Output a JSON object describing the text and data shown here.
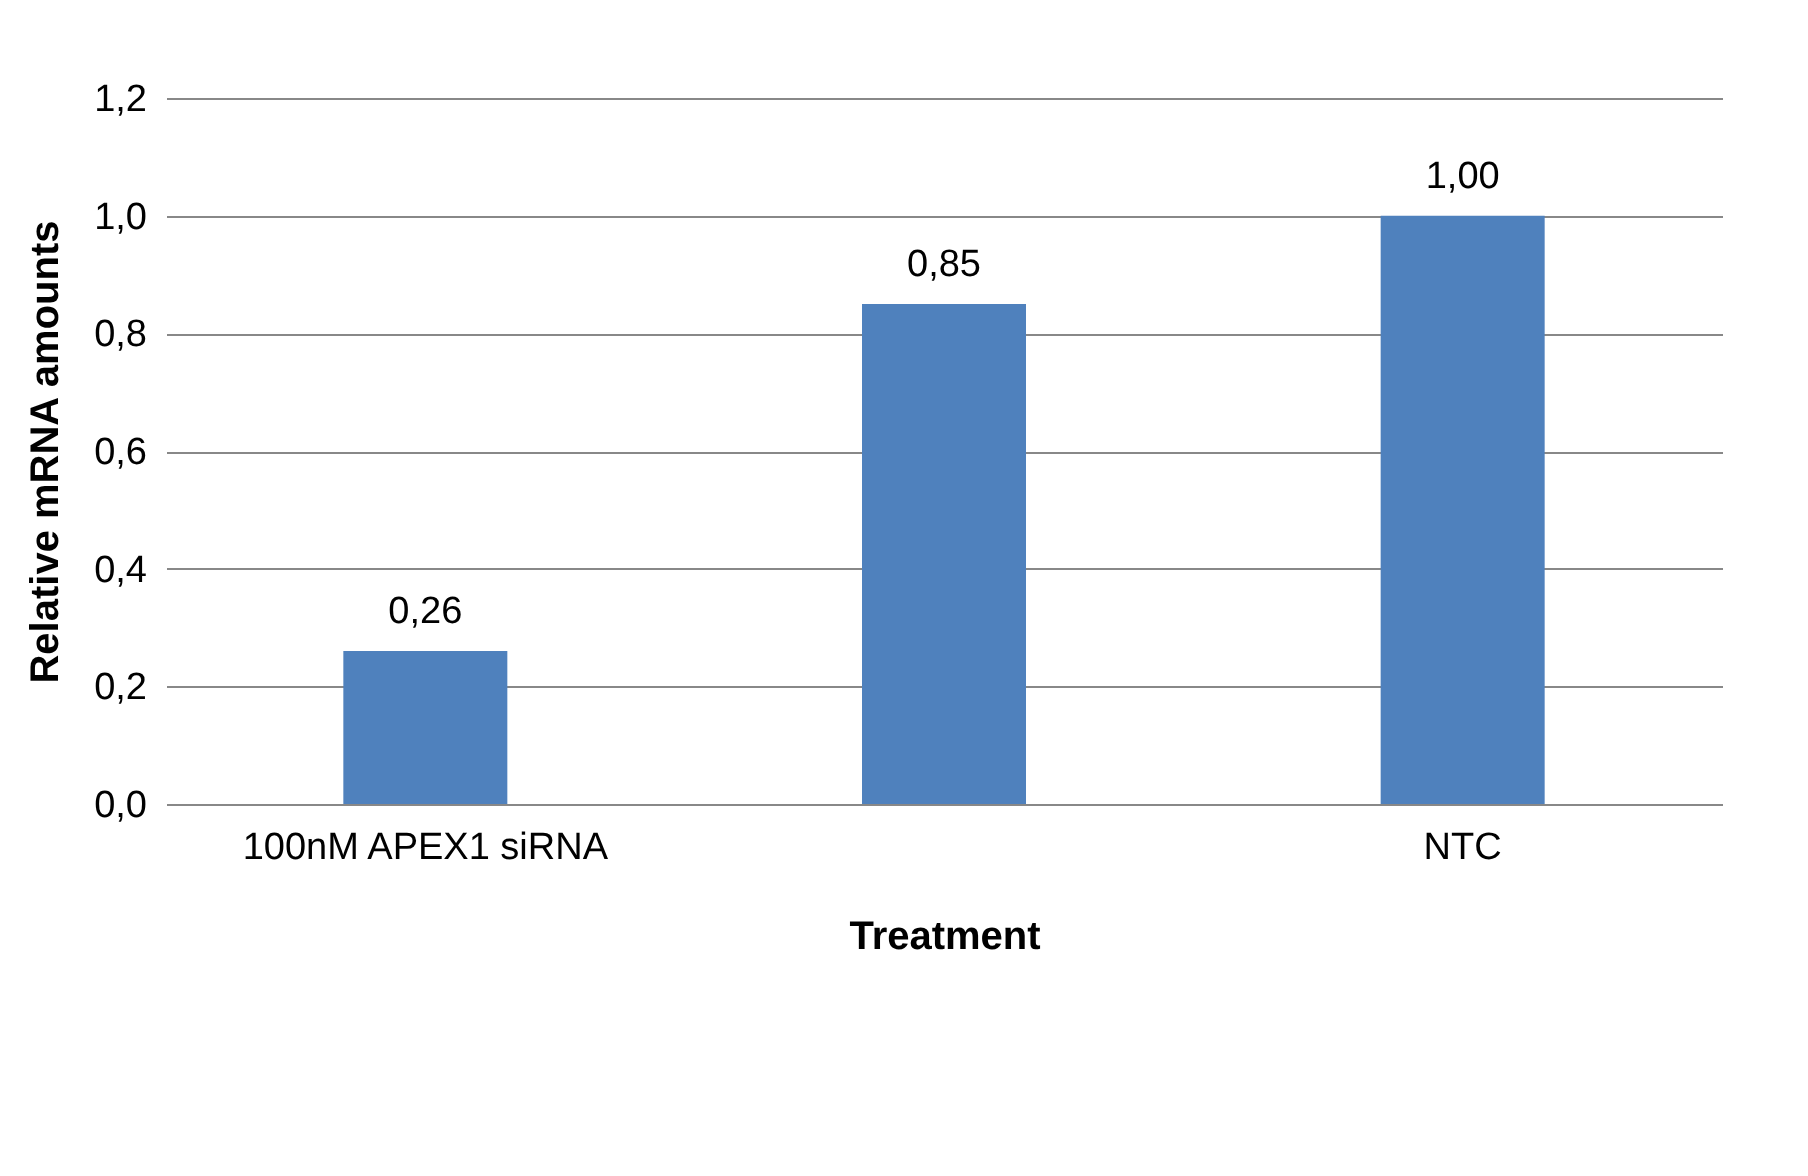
{
  "chart_data": {
    "type": "bar",
    "xlabel": "Treatment",
    "ylabel": "Relative mRNA amounts",
    "categories": [
      "100nM APEX1 siRNA",
      null,
      "NTC"
    ],
    "values": [
      0.26,
      0.85,
      1.0
    ],
    "value_labels": [
      "0,26",
      "0,85",
      "1,00"
    ],
    "color": "#4f81bd",
    "ylim": [
      0,
      1.2
    ],
    "yticks": [
      {
        "value": 0,
        "label": "0,0"
      },
      {
        "value": 0.2,
        "label": "0,2"
      },
      {
        "value": 0.4,
        "label": "0,4"
      },
      {
        "value": 0.6,
        "label": "0,6"
      },
      {
        "value": 0.8,
        "label": "0,8"
      },
      {
        "value": 1.0,
        "label": "1,0"
      },
      {
        "value": 1.2,
        "label": "1,2"
      }
    ],
    "grid": "y"
  }
}
